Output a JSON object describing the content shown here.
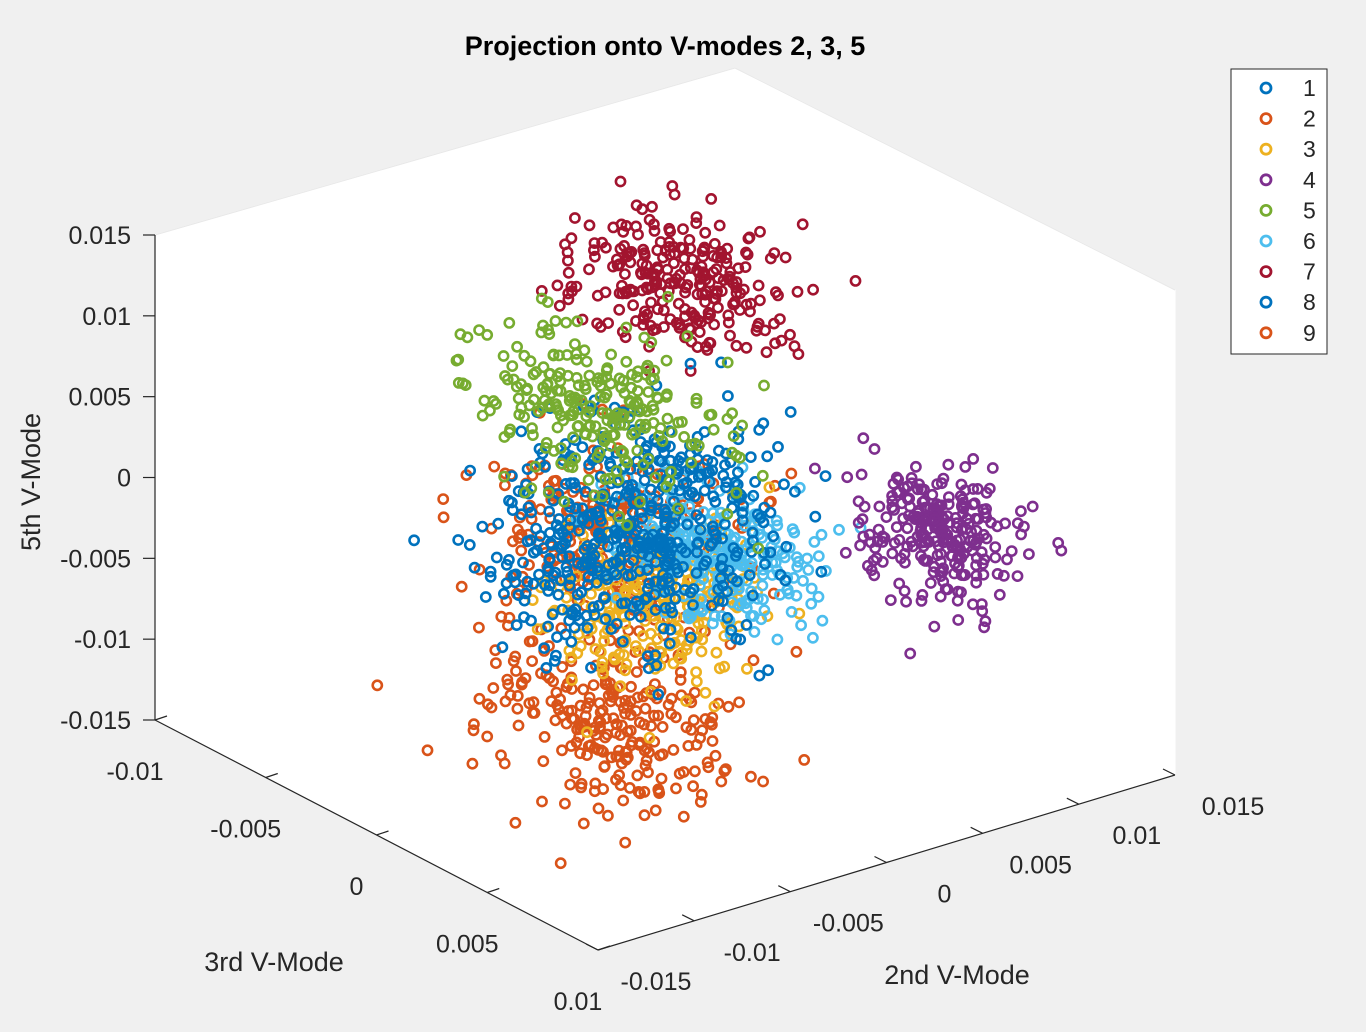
{
  "chart_data": {
    "type": "scatter",
    "title": "Projection onto V-modes 2, 3, 5",
    "xlabel": "2nd V-Mode",
    "ylabel": "3rd V-Mode",
    "zlabel": "5th V-Mode",
    "xlim": [
      -0.015,
      0.015
    ],
    "ylim": [
      -0.01,
      0.01
    ],
    "zlim": [
      -0.015,
      0.015
    ],
    "x_ticks": [
      "-0.015",
      "-0.01",
      "-0.005",
      "0",
      "0.005",
      "0.01",
      "0.015"
    ],
    "y_ticks": [
      "-0.01",
      "-0.005",
      "0",
      "0.005",
      "0.01"
    ],
    "z_ticks": [
      "-0.015",
      "-0.01",
      "-0.005",
      "0",
      "0.005",
      "0.01",
      "0.015"
    ],
    "marker": "open-circle",
    "grid": "off",
    "legend_position": "top-right",
    "series": [
      {
        "name": "1",
        "color": "#0072bd",
        "center": [
          0.0045,
          -0.004,
          -0.004
        ],
        "spread": [
          0.0035,
          0.0035,
          0.0042
        ]
      },
      {
        "name": "2",
        "color": "#d95319",
        "center": [
          -0.007,
          0.0035,
          -0.0085
        ],
        "spread": [
          0.004,
          0.0035,
          0.0032
        ]
      },
      {
        "name": "3",
        "color": "#edb120",
        "center": [
          -0.008,
          0.007,
          0.002
        ],
        "spread": [
          0.0035,
          0.0025,
          0.0035
        ]
      },
      {
        "name": "4",
        "color": "#7e2f8e",
        "center": [
          0.0115,
          0.0025,
          -0.004
        ],
        "spread": [
          0.0022,
          0.0022,
          0.003
        ]
      },
      {
        "name": "5",
        "color": "#77ac30",
        "center": [
          0.001,
          -0.004,
          0.003
        ],
        "spread": [
          0.0035,
          0.0035,
          0.0035
        ]
      },
      {
        "name": "6",
        "color": "#4dbeee",
        "center": [
          0.0075,
          -0.004,
          -0.009
        ],
        "spread": [
          0.003,
          0.003,
          0.003
        ]
      },
      {
        "name": "7",
        "color": "#a2142f",
        "center": [
          0.006,
          -0.0045,
          0.0085
        ],
        "spread": [
          0.0035,
          0.003,
          0.0028
        ]
      },
      {
        "name": "8",
        "color": "#0072bd",
        "center": [
          0.0002,
          -0.003,
          -0.006
        ],
        "spread": [
          0.004,
          0.003,
          0.004
        ]
      },
      {
        "name": "9",
        "color": "#d95319",
        "center": [
          0.003,
          -0.005,
          -0.007
        ],
        "spread": [
          0.004,
          0.0035,
          0.0038
        ]
      }
    ]
  }
}
